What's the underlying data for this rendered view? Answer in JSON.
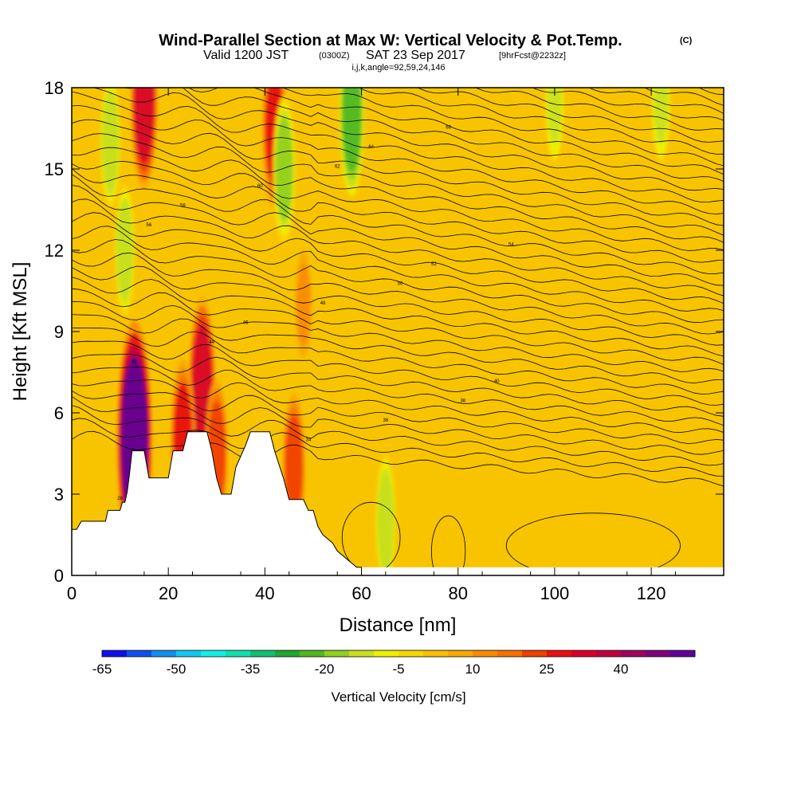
{
  "chart_data": {
    "type": "heatmap",
    "title": "Wind-Parallel Section at Max W: Vertical Velocity & Pot.Temp.",
    "title_unit": "(C)",
    "subtitle_valid": "Valid 1200 JST",
    "subtitle_z": "(0300Z)",
    "subtitle_date": "SAT 23 Sep 2017",
    "subtitle_fcst": "[9hrFcst@2232z]",
    "subtitle_ijk": "i,j,k,angle=92,59,24,146",
    "xlabel": "Distance [nm]",
    "ylabel": "Height [Kft MSL]",
    "xlim": [
      0,
      135
    ],
    "ylim": [
      0,
      18
    ],
    "x_ticks": [
      "0",
      "20",
      "40",
      "60",
      "80",
      "100",
      "120"
    ],
    "y_ticks": [
      "0",
      "3",
      "6",
      "9",
      "12",
      "15",
      "18"
    ],
    "colorbar_label": "Vertical Velocity [cm/s]",
    "colorbar_ticks": [
      "-65",
      "-50",
      "-35",
      "-20",
      "-5",
      "10",
      "25",
      "40"
    ],
    "colorbar_colors": [
      "#1010ee",
      "#1050f0",
      "#1090f0",
      "#10c8f0",
      "#10f0e8",
      "#10e0b0",
      "#10c070",
      "#20a830",
      "#50b820",
      "#90d020",
      "#c8e020",
      "#f0f000",
      "#f8d800",
      "#f8c000",
      "#f8a800",
      "#f88c00",
      "#f87000",
      "#f04000",
      "#e81010",
      "#d8002a",
      "#c00040",
      "#a00060",
      "#800080",
      "#600098"
    ],
    "terrain": [
      [
        0,
        1.7
      ],
      [
        1,
        1.7
      ],
      [
        2,
        2.0
      ],
      [
        7,
        2.0
      ],
      [
        7.5,
        2.4
      ],
      [
        10,
        2.4
      ],
      [
        10.5,
        2.7
      ],
      [
        11,
        2.7
      ],
      [
        11.5,
        3.1
      ],
      [
        12,
        3.8
      ],
      [
        12.5,
        4.6
      ],
      [
        15,
        4.6
      ],
      [
        16,
        3.6
      ],
      [
        20,
        3.6
      ],
      [
        21,
        4.6
      ],
      [
        23,
        4.6
      ],
      [
        24,
        5.3
      ],
      [
        28,
        5.3
      ],
      [
        29,
        4.6
      ],
      [
        30,
        3.6
      ],
      [
        31,
        3.0
      ],
      [
        33,
        3.0
      ],
      [
        34,
        4.0
      ],
      [
        36,
        4.8
      ],
      [
        37,
        5.3
      ],
      [
        41,
        5.3
      ],
      [
        42,
        4.6
      ],
      [
        44,
        3.5
      ],
      [
        45,
        2.8
      ],
      [
        48,
        2.8
      ],
      [
        49,
        2.4
      ],
      [
        50,
        2.4
      ],
      [
        51,
        1.8
      ],
      [
        52,
        1.5
      ],
      [
        54,
        1.2
      ],
      [
        55,
        0.9
      ],
      [
        57,
        0.6
      ],
      [
        59,
        0.3
      ],
      [
        60,
        0.3
      ],
      [
        60,
        0
      ],
      [
        0,
        0
      ]
    ],
    "theta_contour_labels": [
      "28",
      "30",
      "32",
      "34",
      "36",
      "38",
      "40",
      "42",
      "44",
      "46",
      "48",
      "50",
      "52",
      "54",
      "56",
      "58",
      "60",
      "62",
      "64",
      "66"
    ],
    "updraft_cores_cm_s": [
      {
        "x": 13,
        "y": 5.0,
        "w": 50
      },
      {
        "x": 15,
        "y": 17.5,
        "w": 30
      },
      {
        "x": 27,
        "y": 7.0,
        "w": 30
      },
      {
        "x": 23,
        "y": 5.0,
        "w": 25
      },
      {
        "x": 42,
        "y": 16.5,
        "w": 25
      },
      {
        "x": 30,
        "y": 4.5,
        "w": 20
      },
      {
        "x": 46,
        "y": 4.0,
        "w": 20
      },
      {
        "x": 48,
        "y": 10.0,
        "w": 10
      }
    ],
    "downdraft_cores_cm_s": [
      {
        "x": 8,
        "y": 16.0,
        "w": -15
      },
      {
        "x": 11,
        "y": 12.0,
        "w": -15
      },
      {
        "x": 44,
        "y": 15.0,
        "w": -20
      },
      {
        "x": 58,
        "y": 17.0,
        "w": -25
      },
      {
        "x": 65,
        "y": 2.0,
        "w": -15
      },
      {
        "x": 100,
        "y": 17.5,
        "w": -12
      },
      {
        "x": 122,
        "y": 17.5,
        "w": -12
      }
    ]
  }
}
